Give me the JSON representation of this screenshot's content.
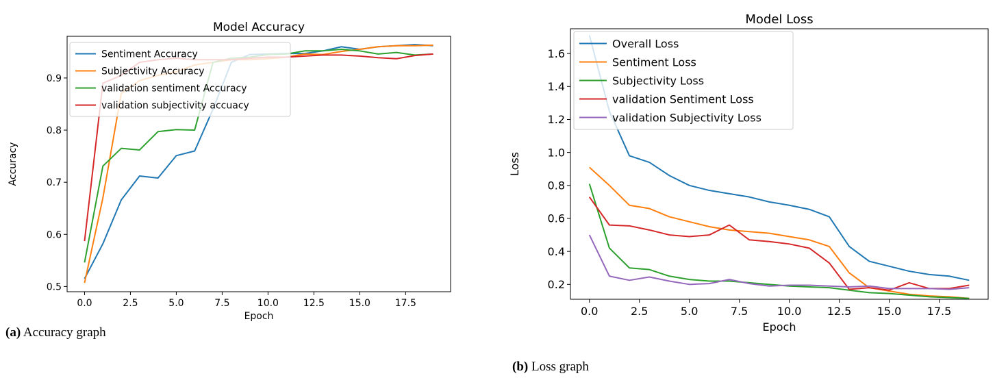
{
  "captions": [
    {
      "tag": "(a)",
      "text": "Accuracy graph"
    },
    {
      "tag": "(b)",
      "text": "Loss graph"
    }
  ],
  "chart_data": [
    {
      "type": "line",
      "title": "Model Accuracy",
      "xlabel": "Epoch",
      "ylabel": "Accuracy",
      "xlim": [
        -0.95,
        19.95
      ],
      "ylim": [
        0.49,
        0.98
      ],
      "xticks": [
        0.0,
        2.5,
        5.0,
        7.5,
        10.0,
        12.5,
        15.0,
        17.5
      ],
      "xtick_labels": [
        "0.0",
        "2.5",
        "5.0",
        "7.5",
        "10.0",
        "12.5",
        "15.0",
        "17.5"
      ],
      "yticks": [
        0.5,
        0.6,
        0.7,
        0.8,
        0.9
      ],
      "ytick_labels": [
        "0.5",
        "0.6",
        "0.7",
        "0.8",
        "0.9"
      ],
      "legend_position": "upper-left",
      "grid": false,
      "x": [
        0,
        1,
        2,
        3,
        4,
        5,
        6,
        7,
        8,
        9,
        10,
        11,
        12,
        13,
        14,
        15,
        16,
        17,
        18,
        19
      ],
      "series": [
        {
          "name": "Sentiment Accuracy",
          "color": "#1f77b4",
          "values": [
            0.515,
            0.582,
            0.666,
            0.712,
            0.708,
            0.751,
            0.76,
            0.84,
            0.93,
            0.945,
            0.946,
            0.947,
            0.947,
            0.952,
            0.96,
            0.955,
            0.96,
            0.962,
            0.964,
            0.962
          ]
        },
        {
          "name": "Subjectivity Accuracy",
          "color": "#ff7f0e",
          "values": [
            0.507,
            0.67,
            0.87,
            0.895,
            0.905,
            0.912,
            0.925,
            0.93,
            0.935,
            0.935,
            0.937,
            0.94,
            0.946,
            0.945,
            0.951,
            0.955,
            0.96,
            0.962,
            0.962,
            0.963
          ]
        },
        {
          "name": "validation sentiment Accuracy",
          "color": "#2ca02c",
          "values": [
            0.546,
            0.731,
            0.765,
            0.762,
            0.797,
            0.801,
            0.8,
            0.93,
            0.938,
            0.94,
            0.945,
            0.946,
            0.952,
            0.952,
            0.955,
            0.952,
            0.946,
            0.949,
            0.944,
            0.946
          ]
        },
        {
          "name": "validation subjectivity accuacy",
          "color": "#d62728",
          "values": [
            0.587,
            0.89,
            0.905,
            0.93,
            0.935,
            0.938,
            0.935,
            0.935,
            0.935,
            0.938,
            0.94,
            0.94,
            0.942,
            0.944,
            0.944,
            0.942,
            0.939,
            0.937,
            0.943,
            0.946
          ]
        }
      ]
    },
    {
      "type": "line",
      "title": "Model Loss",
      "xlabel": "Epoch",
      "ylabel": "Loss",
      "xlim": [
        -0.95,
        19.95
      ],
      "ylim": [
        0.11,
        1.75
      ],
      "xticks": [
        0.0,
        2.5,
        5.0,
        7.5,
        10.0,
        12.5,
        15.0,
        17.5
      ],
      "xtick_labels": [
        "0.0",
        "2.5",
        "5.0",
        "7.5",
        "10.0",
        "12.5",
        "15.0",
        "17.5"
      ],
      "yticks": [
        0.2,
        0.4,
        0.6,
        0.8,
        1.0,
        1.2,
        1.4,
        1.6
      ],
      "ytick_labels": [
        "0.2",
        "0.4",
        "0.6",
        "0.8",
        "1.0",
        "1.2",
        "1.4",
        "1.6"
      ],
      "legend_position": "upper-left",
      "grid": false,
      "x": [
        0,
        1,
        2,
        3,
        4,
        5,
        6,
        7,
        8,
        9,
        10,
        11,
        12,
        13,
        14,
        15,
        16,
        17,
        18,
        19
      ],
      "series": [
        {
          "name": "Overall Loss",
          "color": "#1f77b4",
          "values": [
            1.71,
            1.25,
            0.98,
            0.94,
            0.86,
            0.8,
            0.77,
            0.75,
            0.73,
            0.7,
            0.68,
            0.655,
            0.61,
            0.43,
            0.34,
            0.31,
            0.28,
            0.26,
            0.25,
            0.225
          ]
        },
        {
          "name": "Sentiment Loss",
          "color": "#ff7f0e",
          "values": [
            0.91,
            0.8,
            0.68,
            0.66,
            0.61,
            0.58,
            0.55,
            0.53,
            0.52,
            0.51,
            0.49,
            0.47,
            0.43,
            0.27,
            0.18,
            0.16,
            0.14,
            0.13,
            0.125,
            0.115
          ]
        },
        {
          "name": "Subjectivity Loss",
          "color": "#2ca02c",
          "values": [
            0.81,
            0.42,
            0.3,
            0.29,
            0.25,
            0.23,
            0.22,
            0.22,
            0.21,
            0.2,
            0.19,
            0.185,
            0.18,
            0.165,
            0.15,
            0.145,
            0.135,
            0.125,
            0.12,
            0.115
          ]
        },
        {
          "name": "validation Sentiment Loss",
          "color": "#d62728",
          "values": [
            0.73,
            0.56,
            0.555,
            0.53,
            0.5,
            0.49,
            0.5,
            0.56,
            0.47,
            0.46,
            0.445,
            0.42,
            0.33,
            0.17,
            0.18,
            0.165,
            0.21,
            0.175,
            0.175,
            0.195
          ]
        },
        {
          "name": "validation Subjectivity Loss",
          "color": "#9467bd",
          "values": [
            0.5,
            0.25,
            0.225,
            0.245,
            0.22,
            0.2,
            0.205,
            0.23,
            0.205,
            0.19,
            0.195,
            0.195,
            0.19,
            0.185,
            0.19,
            0.175,
            0.175,
            0.175,
            0.17,
            0.18
          ]
        }
      ]
    }
  ]
}
